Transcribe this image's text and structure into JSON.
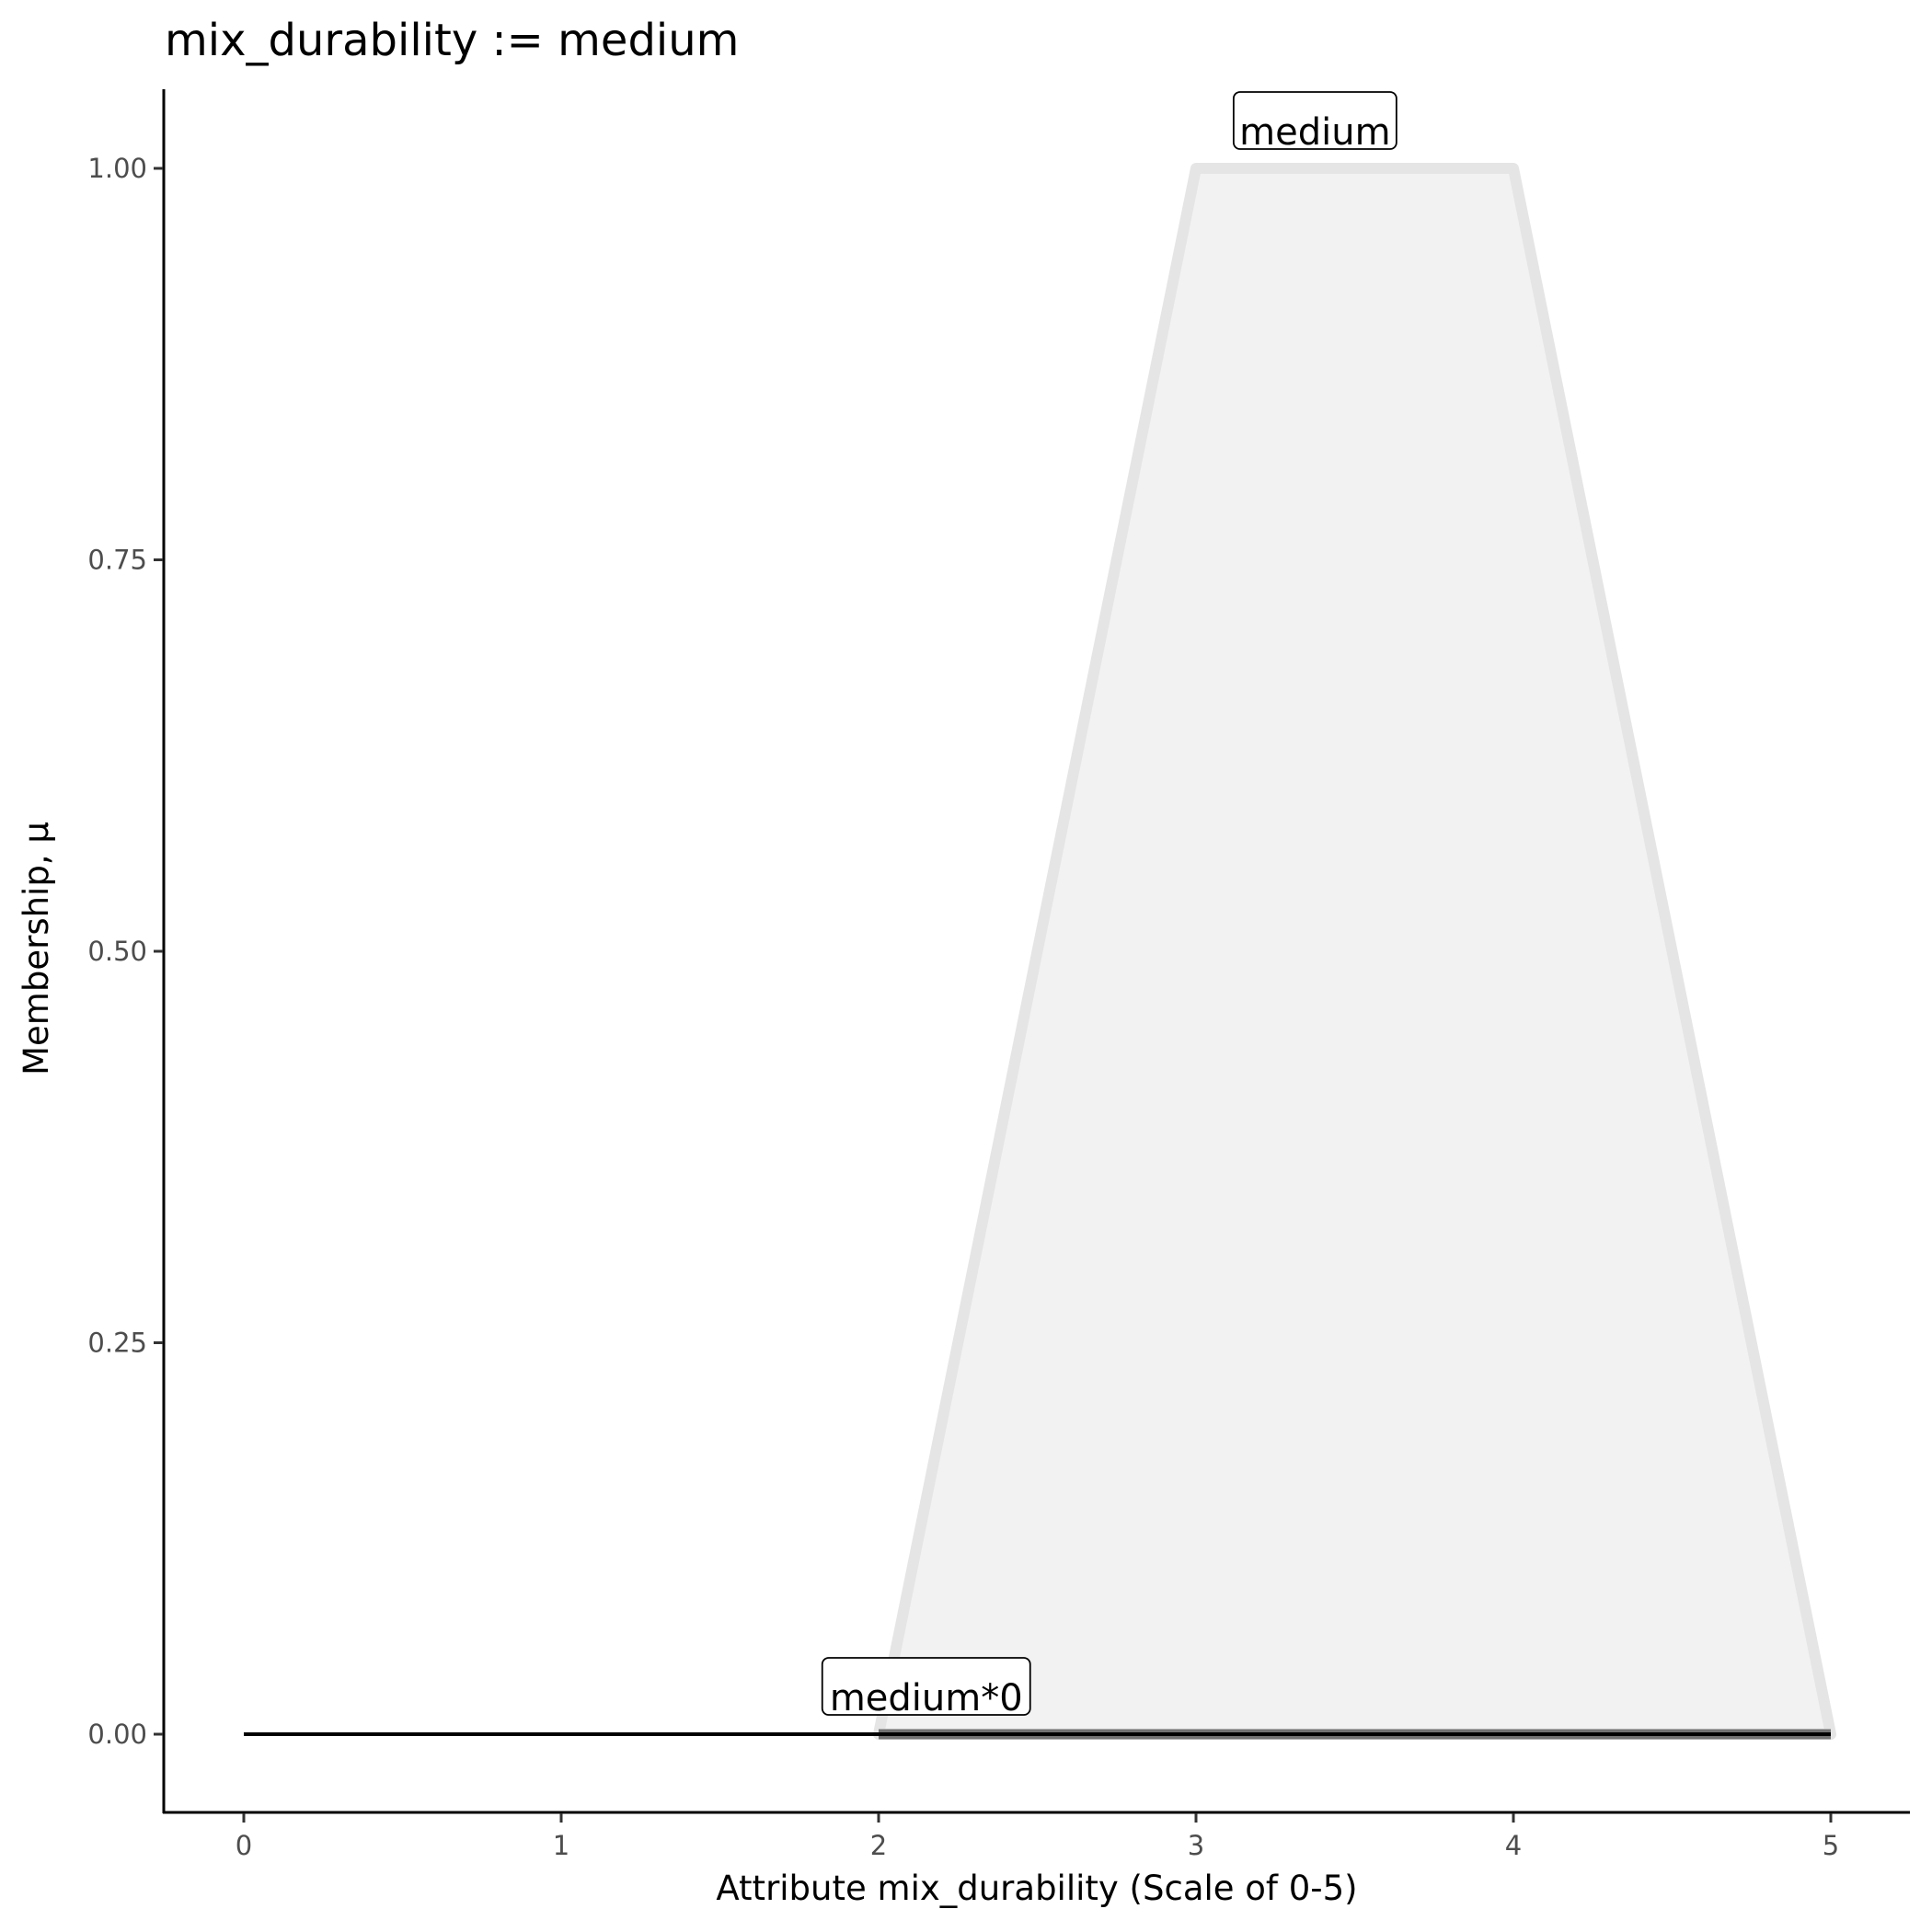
{
  "chart_data": {
    "type": "area",
    "title": "mix_durability := medium",
    "xlabel": "Attribute mix_durability (Scale of 0-5)",
    "ylabel": "Membership, μ",
    "xlim": [
      -0.25,
      5.25
    ],
    "ylim": [
      -0.05,
      1.05
    ],
    "x_ticks": [
      "0",
      "1",
      "2",
      "3",
      "4",
      "5"
    ],
    "y_ticks": [
      "0.00",
      "0.25",
      "0.50",
      "0.75",
      "1.00"
    ],
    "grid": false,
    "series": [
      {
        "name": "medium",
        "x": [
          2,
          3,
          4,
          5
        ],
        "y": [
          0,
          1,
          1,
          0
        ],
        "label_at": [
          3.375,
          1.0
        ],
        "fill": "#f2f2f2",
        "stroke": "#e5e5e5"
      },
      {
        "name": "medium*0",
        "x": [
          2,
          3,
          4,
          5
        ],
        "y": [
          0,
          0,
          0,
          0
        ],
        "label_at": [
          2.15,
          0.0
        ],
        "stroke": "#555555"
      }
    ],
    "baseline": {
      "x": [
        0,
        5
      ],
      "y": [
        0,
        0
      ],
      "stroke": "#000000"
    }
  }
}
